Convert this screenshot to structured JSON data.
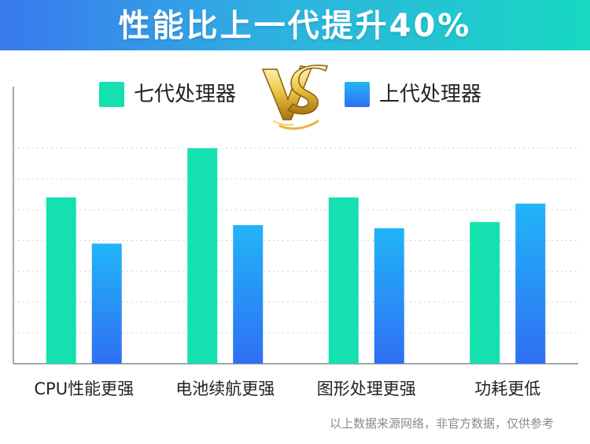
{
  "banner": {
    "title": "性能比上一代提升40%"
  },
  "colors": {
    "banner_start": "#3a78ee",
    "banner_end": "#17d8c2",
    "new_series": "#14e0b0",
    "old_series_top": "#21b5f8",
    "old_series_bottom": "#2f6ff4",
    "vs_gold": "#d8a820"
  },
  "vs_logo": {
    "icon": "vs-emblem-icon"
  },
  "chart_data": {
    "type": "bar",
    "title": "",
    "xlabel": "",
    "ylabel": "",
    "ylim": [
      0,
      9
    ],
    "grid": true,
    "legend_position": "top",
    "categories": [
      "CPU性能更强",
      "电池续航更强",
      "图形处理更强",
      "功耗更低"
    ],
    "series": [
      {
        "name": "七代处理器",
        "values": [
          5.4,
          7.0,
          5.4,
          4.6
        ]
      },
      {
        "name": "上代处理器",
        "values": [
          3.9,
          4.5,
          4.4,
          5.2
        ]
      }
    ]
  },
  "footnote": "以上数据来源网络，非官方数据，仅供参考"
}
